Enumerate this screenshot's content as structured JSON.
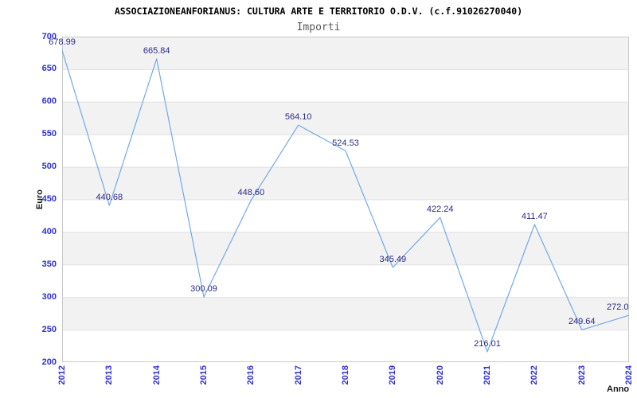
{
  "chart_data": {
    "type": "line",
    "title": "ASSOCIAZIONEANFORIANUS: CULTURA ARTE E TERRITORIO O.D.V. (c.f.91026270040)",
    "subtitle": "Importi",
    "xlabel": "Anno",
    "ylabel": "Euro",
    "x": [
      2012,
      2013,
      2014,
      2015,
      2016,
      2017,
      2018,
      2019,
      2020,
      2021,
      2022,
      2023,
      2024
    ],
    "x_tick_labels": [
      "2012",
      "2013",
      "2014",
      "2015",
      "2016",
      "2017",
      "2018",
      "2019",
      "2020",
      "2021",
      "2022",
      "2023",
      "2024"
    ],
    "values": [
      678.99,
      440.68,
      665.84,
      300.09,
      448.6,
      564.1,
      524.53,
      345.49,
      422.24,
      216.01,
      411.47,
      249.64,
      272.0
    ],
    "point_labels": [
      "678.99",
      "440.68",
      "665.84",
      "300.09",
      "448.60",
      "564.10",
      "524.53",
      "345.49",
      "422.24",
      "216.01",
      "411.47",
      "249.64",
      "272.0"
    ],
    "ylim": [
      200,
      700
    ],
    "y_tick_step": 50,
    "y_tick_labels": [
      "700",
      "650",
      "600",
      "550",
      "500",
      "450",
      "400",
      "350",
      "300",
      "250",
      "200"
    ],
    "grid": "horizontal-bands-alternating",
    "legend": "none",
    "colors": {
      "line": "#74a9e8",
      "band_fill": "#f2f2f2",
      "grid_line": "#e0e0e0",
      "plot_border": "#c9c9c9",
      "axis_tick_label": "#3030d0",
      "data_label": "#2b2b85",
      "title": "#000000",
      "subtitle": "#595959",
      "axis_title": "#1a1a1a"
    }
  }
}
